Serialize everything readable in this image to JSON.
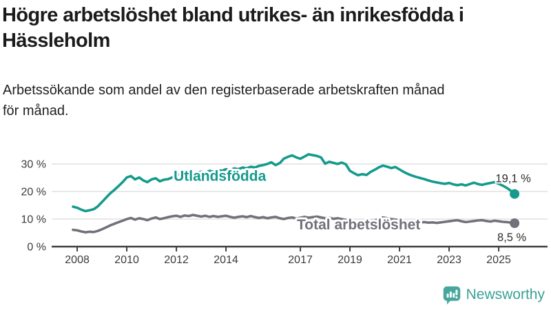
{
  "header": {
    "title": "Högre arbetslöshet bland utrikes- än inrikesfödda i Hässleholm",
    "title_lines": [
      "Högre arbetslöshet bland utrikes- än inrikesfödda i",
      "Hässleholm"
    ],
    "subtitle": "Arbetssökande som andel av den registerbaserade arbetskraften månad för månad.",
    "subtitle_lines": [
      "Arbetssökande som andel av den registerbaserade arbetskraften månad",
      "för månad."
    ]
  },
  "branding": {
    "name": "Newsworthy",
    "icon": "bar-chart-speech-bubble-icon",
    "icon_color": "#47a69d",
    "text_color": "#3aa197"
  },
  "theme": {
    "background": "#ffffff",
    "grid_color": "#d9d9d9",
    "axis_color": "#3c3c3c",
    "tick_label_color": "#3a3a3a",
    "value_label_color": "#2e2e2e"
  },
  "chart_data": {
    "type": "line",
    "title": "",
    "xlabel": "",
    "ylabel": "",
    "grid": "horizontal",
    "legend_position": "inline-labels",
    "x_axis": {
      "min": 2006.97,
      "max": 2026.97,
      "ticks": [
        2008,
        2010,
        2012,
        2014,
        2017,
        2019,
        2021,
        2023,
        2025
      ],
      "tick_labels": [
        "2008",
        "2010",
        "2012",
        "2014",
        "2017",
        "2019",
        "2021",
        "2023",
        "2025"
      ]
    },
    "y_axis": {
      "min": 0,
      "max": 37,
      "ticks": [
        0,
        10,
        20,
        30
      ],
      "tick_labels": [
        "0 %",
        "10 %",
        "20 %",
        "30 %"
      ]
    },
    "series": [
      {
        "name": "Utlandsfödda",
        "color": "#149a8c",
        "line_width": 3.6,
        "end_value": 19.1,
        "end_value_label": "19,1 %",
        "end_label_offset": [
          -2,
          -17
        ],
        "name_label_at": [
          2011.89,
          25.6
        ],
        "points": [
          [
            2007.83,
            14.5
          ],
          [
            2008.0,
            14.1
          ],
          [
            2008.17,
            13.4
          ],
          [
            2008.33,
            12.9
          ],
          [
            2008.5,
            13.2
          ],
          [
            2008.67,
            13.6
          ],
          [
            2008.83,
            14.6
          ],
          [
            2009.0,
            16.2
          ],
          [
            2009.17,
            17.8
          ],
          [
            2009.33,
            19.3
          ],
          [
            2009.5,
            20.6
          ],
          [
            2009.67,
            22.0
          ],
          [
            2009.83,
            23.4
          ],
          [
            2010.0,
            25.1
          ],
          [
            2010.17,
            25.6
          ],
          [
            2010.33,
            24.4
          ],
          [
            2010.5,
            25.1
          ],
          [
            2010.67,
            24.0
          ],
          [
            2010.83,
            23.4
          ],
          [
            2011.0,
            24.4
          ],
          [
            2011.17,
            24.8
          ],
          [
            2011.33,
            23.7
          ],
          [
            2011.5,
            24.3
          ],
          [
            2011.67,
            24.5
          ],
          [
            2011.83,
            25.1
          ],
          [
            2012.0,
            25.7
          ],
          [
            2012.17,
            26.4
          ],
          [
            2012.33,
            25.9
          ],
          [
            2012.5,
            26.5
          ],
          [
            2012.67,
            26.2
          ],
          [
            2012.83,
            26.8
          ],
          [
            2013.0,
            27.2
          ],
          [
            2013.17,
            26.8
          ],
          [
            2013.33,
            27.5
          ],
          [
            2013.5,
            27.2
          ],
          [
            2013.67,
            27.8
          ],
          [
            2013.83,
            27.5
          ],
          [
            2014.0,
            28.1
          ],
          [
            2014.17,
            27.7
          ],
          [
            2014.33,
            28.4
          ],
          [
            2014.5,
            28.1
          ],
          [
            2014.67,
            28.7
          ],
          [
            2014.83,
            28.4
          ],
          [
            2015.0,
            29.0
          ],
          [
            2015.17,
            28.7
          ],
          [
            2015.33,
            29.3
          ],
          [
            2015.5,
            29.6
          ],
          [
            2015.67,
            30.0
          ],
          [
            2015.83,
            30.6
          ],
          [
            2016.0,
            29.6
          ],
          [
            2016.17,
            30.3
          ],
          [
            2016.33,
            31.9
          ],
          [
            2016.5,
            32.6
          ],
          [
            2016.67,
            33.1
          ],
          [
            2016.83,
            32.4
          ],
          [
            2017.0,
            31.9
          ],
          [
            2017.17,
            32.7
          ],
          [
            2017.33,
            33.5
          ],
          [
            2017.5,
            33.2
          ],
          [
            2017.67,
            32.9
          ],
          [
            2017.83,
            32.4
          ],
          [
            2018.0,
            30.1
          ],
          [
            2018.17,
            30.8
          ],
          [
            2018.33,
            30.4
          ],
          [
            2018.5,
            30.0
          ],
          [
            2018.67,
            30.5
          ],
          [
            2018.83,
            29.9
          ],
          [
            2019.0,
            27.5
          ],
          [
            2019.17,
            26.6
          ],
          [
            2019.33,
            25.9
          ],
          [
            2019.5,
            26.3
          ],
          [
            2019.67,
            26.0
          ],
          [
            2019.83,
            27.1
          ],
          [
            2020.0,
            27.9
          ],
          [
            2020.17,
            28.8
          ],
          [
            2020.33,
            29.4
          ],
          [
            2020.5,
            29.0
          ],
          [
            2020.67,
            28.5
          ],
          [
            2020.83,
            28.9
          ],
          [
            2021.0,
            28.0
          ],
          [
            2021.17,
            27.1
          ],
          [
            2021.33,
            26.4
          ],
          [
            2021.5,
            25.8
          ],
          [
            2021.67,
            25.3
          ],
          [
            2021.83,
            24.9
          ],
          [
            2022.0,
            24.5
          ],
          [
            2022.17,
            24.0
          ],
          [
            2022.33,
            23.6
          ],
          [
            2022.5,
            23.3
          ],
          [
            2022.67,
            23.0
          ],
          [
            2022.83,
            22.8
          ],
          [
            2023.0,
            23.1
          ],
          [
            2023.17,
            22.6
          ],
          [
            2023.33,
            22.3
          ],
          [
            2023.5,
            22.6
          ],
          [
            2023.67,
            22.2
          ],
          [
            2023.83,
            22.7
          ],
          [
            2024.0,
            23.2
          ],
          [
            2024.17,
            22.7
          ],
          [
            2024.33,
            22.4
          ],
          [
            2024.5,
            22.8
          ],
          [
            2024.67,
            23.1
          ],
          [
            2024.83,
            23.4
          ],
          [
            2025.0,
            22.8
          ],
          [
            2025.17,
            22.1
          ],
          [
            2025.33,
            21.3
          ],
          [
            2025.5,
            20.2
          ],
          [
            2025.64,
            19.1
          ]
        ]
      },
      {
        "name": "Total arbetslöshet",
        "color": "#71717a",
        "line_width": 3.6,
        "end_value": 8.5,
        "end_value_label": "8,5 %",
        "end_label_offset": [
          -4,
          26
        ],
        "name_label_at": [
          2016.86,
          8.0
        ],
        "points": [
          [
            2007.83,
            6.1
          ],
          [
            2008.0,
            5.9
          ],
          [
            2008.17,
            5.5
          ],
          [
            2008.33,
            5.2
          ],
          [
            2008.5,
            5.4
          ],
          [
            2008.67,
            5.3
          ],
          [
            2008.83,
            5.7
          ],
          [
            2009.0,
            6.3
          ],
          [
            2009.17,
            7.0
          ],
          [
            2009.33,
            7.7
          ],
          [
            2009.5,
            8.3
          ],
          [
            2009.67,
            8.9
          ],
          [
            2009.83,
            9.4
          ],
          [
            2010.0,
            10.0
          ],
          [
            2010.17,
            10.4
          ],
          [
            2010.33,
            9.8
          ],
          [
            2010.5,
            10.3
          ],
          [
            2010.67,
            10.0
          ],
          [
            2010.83,
            9.6
          ],
          [
            2011.0,
            10.2
          ],
          [
            2011.17,
            10.6
          ],
          [
            2011.33,
            10.0
          ],
          [
            2011.5,
            10.3
          ],
          [
            2011.67,
            10.7
          ],
          [
            2011.83,
            11.0
          ],
          [
            2012.0,
            11.2
          ],
          [
            2012.17,
            10.8
          ],
          [
            2012.33,
            11.3
          ],
          [
            2012.5,
            11.1
          ],
          [
            2012.67,
            11.5
          ],
          [
            2012.83,
            11.2
          ],
          [
            2013.0,
            10.9
          ],
          [
            2013.17,
            11.2
          ],
          [
            2013.33,
            10.8
          ],
          [
            2013.5,
            11.1
          ],
          [
            2013.67,
            10.8
          ],
          [
            2013.83,
            11.0
          ],
          [
            2014.0,
            11.2
          ],
          [
            2014.17,
            10.8
          ],
          [
            2014.33,
            10.5
          ],
          [
            2014.5,
            10.8
          ],
          [
            2014.67,
            11.0
          ],
          [
            2014.83,
            10.7
          ],
          [
            2015.0,
            11.1
          ],
          [
            2015.17,
            10.7
          ],
          [
            2015.33,
            10.4
          ],
          [
            2015.5,
            10.7
          ],
          [
            2015.67,
            10.3
          ],
          [
            2015.83,
            10.6
          ],
          [
            2016.0,
            10.8
          ],
          [
            2016.17,
            10.3
          ],
          [
            2016.33,
            10.0
          ],
          [
            2016.5,
            10.4
          ],
          [
            2016.67,
            10.6
          ],
          [
            2016.83,
            10.2
          ],
          [
            2017.0,
            10.5
          ],
          [
            2017.17,
            10.8
          ],
          [
            2017.33,
            10.5
          ],
          [
            2017.5,
            10.7
          ],
          [
            2017.67,
            10.9
          ],
          [
            2017.83,
            10.6
          ],
          [
            2018.0,
            10.3
          ],
          [
            2018.17,
            10.5
          ],
          [
            2018.33,
            10.1
          ],
          [
            2018.5,
            10.3
          ],
          [
            2018.67,
            10.0
          ],
          [
            2018.83,
            9.7
          ],
          [
            2019.0,
            9.4
          ],
          [
            2019.17,
            9.1
          ],
          [
            2019.33,
            8.9
          ],
          [
            2019.5,
            9.2
          ],
          [
            2019.67,
            9.0
          ],
          [
            2019.83,
            9.3
          ],
          [
            2020.0,
            9.5
          ],
          [
            2020.17,
            10.1
          ],
          [
            2020.33,
            10.6
          ],
          [
            2020.5,
            10.3
          ],
          [
            2020.67,
            10.0
          ],
          [
            2020.83,
            9.8
          ],
          [
            2021.0,
            9.6
          ],
          [
            2021.17,
            9.3
          ],
          [
            2021.33,
            9.0
          ],
          [
            2021.5,
            8.8
          ],
          [
            2021.67,
            8.7
          ],
          [
            2021.83,
            8.8
          ],
          [
            2022.0,
            8.9
          ],
          [
            2022.17,
            8.7
          ],
          [
            2022.33,
            8.8
          ],
          [
            2022.5,
            8.6
          ],
          [
            2022.67,
            8.8
          ],
          [
            2022.83,
            9.0
          ],
          [
            2023.0,
            9.2
          ],
          [
            2023.17,
            9.4
          ],
          [
            2023.33,
            9.6
          ],
          [
            2023.5,
            9.2
          ],
          [
            2023.67,
            8.9
          ],
          [
            2023.83,
            9.1
          ],
          [
            2024.0,
            9.3
          ],
          [
            2024.17,
            9.5
          ],
          [
            2024.33,
            9.6
          ],
          [
            2024.5,
            9.3
          ],
          [
            2024.67,
            9.1
          ],
          [
            2024.83,
            9.4
          ],
          [
            2025.0,
            9.2
          ],
          [
            2025.17,
            9.0
          ],
          [
            2025.33,
            8.9
          ],
          [
            2025.5,
            8.7
          ],
          [
            2025.64,
            8.5
          ]
        ]
      }
    ]
  }
}
